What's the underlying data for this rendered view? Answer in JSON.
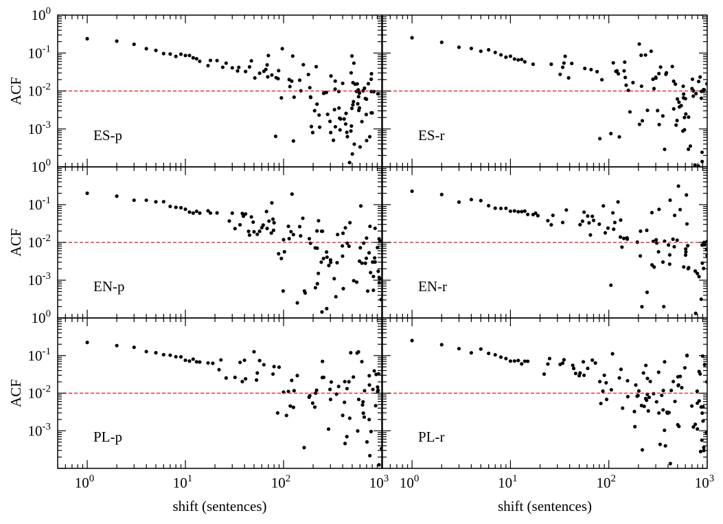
{
  "figure": {
    "colors": {
      "axis": "#000000",
      "points": "#000000",
      "threshold": "#e0101a",
      "background": "#ffffff"
    },
    "xlabel": "shift (sentences)",
    "ylabel": "ACF"
  },
  "chart_data": [
    {
      "type": "scatter",
      "label": "ES-p",
      "xscale": "log",
      "yscale": "log",
      "xlim": [
        0.5,
        1000
      ],
      "ylim": [
        0.0001,
        1
      ],
      "xticks": [
        "10^0",
        "10^1",
        "10^2",
        "10^3"
      ],
      "yticks": [
        "10^0",
        "10^-1",
        "10^-2",
        "10^-3"
      ],
      "threshold": 0.01,
      "ylabel": "ACF",
      "xlabel": "",
      "series": [
        {
          "name": "ACF",
          "x": [
            1,
            2,
            3,
            4,
            5,
            6,
            7,
            8,
            10,
            12,
            15,
            20,
            30,
            40,
            50,
            60,
            70,
            80,
            100,
            120,
            150,
            200,
            250,
            300,
            400,
            500,
            600,
            700,
            800,
            900
          ],
          "y": [
            0.25,
            0.2,
            0.15,
            0.125,
            0.11,
            0.1,
            0.095,
            0.09,
            0.085,
            0.075,
            0.06,
            0.055,
            0.045,
            0.042,
            0.04,
            0.038,
            0.036,
            0.035,
            0.032,
            0.025,
            0.02,
            0.016,
            0.012,
            0.01,
            0.008,
            0.007,
            0.007,
            0.006,
            0.006,
            0.005
          ]
        }
      ]
    },
    {
      "type": "scatter",
      "label": "ES-r",
      "xscale": "log",
      "yscale": "log",
      "xlim": [
        0.5,
        1000
      ],
      "ylim": [
        0.0001,
        1
      ],
      "xticks": [
        "10^0",
        "10^1",
        "10^2",
        "10^3"
      ],
      "yticks": [],
      "threshold": 0.01,
      "ylabel": "",
      "xlabel": "",
      "series": [
        {
          "name": "ACF",
          "x": [
            1,
            2,
            3,
            4,
            5,
            6,
            7,
            8,
            10,
            12,
            15,
            20,
            30,
            40,
            50,
            60,
            70,
            80,
            100,
            120,
            150,
            200,
            250,
            300,
            400,
            500,
            600,
            700,
            800,
            900
          ],
          "y": [
            0.26,
            0.19,
            0.15,
            0.13,
            0.12,
            0.115,
            0.1,
            0.09,
            0.08,
            0.07,
            0.06,
            0.055,
            0.045,
            0.04,
            0.038,
            0.035,
            0.03,
            0.028,
            0.025,
            0.02,
            0.018,
            0.015,
            0.013,
            0.011,
            0.01,
            0.009,
            0.009,
            0.008,
            0.008,
            0.007
          ]
        }
      ]
    },
    {
      "type": "scatter",
      "label": "EN-p",
      "xscale": "log",
      "yscale": "log",
      "xlim": [
        0.5,
        1000
      ],
      "ylim": [
        0.0001,
        1
      ],
      "xticks": [
        "10^0",
        "10^1",
        "10^2",
        "10^3"
      ],
      "yticks": [
        "10^0",
        "10^-1",
        "10^-2",
        "10^-3"
      ],
      "threshold": 0.01,
      "ylabel": "ACF",
      "xlabel": "",
      "series": [
        {
          "name": "ACF",
          "x": [
            1,
            2,
            3,
            4,
            5,
            6,
            7,
            8,
            10,
            12,
            15,
            20,
            30,
            40,
            50,
            60,
            70,
            80,
            100,
            120,
            150,
            200,
            250,
            300,
            400,
            500,
            600,
            700,
            800,
            900
          ],
          "y": [
            0.22,
            0.17,
            0.13,
            0.12,
            0.11,
            0.1,
            0.09,
            0.085,
            0.075,
            0.065,
            0.06,
            0.05,
            0.042,
            0.038,
            0.035,
            0.033,
            0.03,
            0.028,
            0.025,
            0.02,
            0.016,
            0.013,
            0.011,
            0.009,
            0.008,
            0.007,
            0.006,
            0.006,
            0.005,
            0.005
          ]
        }
      ]
    },
    {
      "type": "scatter",
      "label": "EN-r",
      "xscale": "log",
      "yscale": "log",
      "xlim": [
        0.5,
        1000
      ],
      "ylim": [
        0.0001,
        1
      ],
      "xticks": [
        "10^0",
        "10^1",
        "10^2",
        "10^3"
      ],
      "yticks": [],
      "threshold": 0.01,
      "ylabel": "",
      "xlabel": "",
      "series": [
        {
          "name": "ACF",
          "x": [
            1,
            2,
            3,
            4,
            5,
            6,
            7,
            8,
            10,
            12,
            15,
            20,
            30,
            40,
            50,
            60,
            70,
            80,
            100,
            120,
            150,
            200,
            250,
            300,
            400,
            500,
            600,
            700,
            800,
            900
          ],
          "y": [
            0.23,
            0.17,
            0.13,
            0.12,
            0.11,
            0.1,
            0.09,
            0.085,
            0.075,
            0.065,
            0.06,
            0.05,
            0.042,
            0.038,
            0.034,
            0.031,
            0.028,
            0.026,
            0.023,
            0.02,
            0.017,
            0.014,
            0.012,
            0.01,
            0.009,
            0.008,
            0.007,
            0.007,
            0.006,
            0.006
          ]
        }
      ]
    },
    {
      "type": "scatter",
      "label": "PL-p",
      "xscale": "log",
      "yscale": "log",
      "xlim": [
        0.5,
        1000
      ],
      "ylim": [
        0.0001,
        1
      ],
      "xticks": [
        "10^0",
        "10^1",
        "10^2",
        "10^3"
      ],
      "yticks": [
        "10^0",
        "10^-1",
        "10^-2",
        "10^-3"
      ],
      "threshold": 0.01,
      "ylabel": "ACF",
      "xlabel": "shift (sentences)",
      "series": [
        {
          "name": "ACF",
          "x": [
            1,
            2,
            3,
            4,
            5,
            6,
            7,
            8,
            10,
            12,
            15,
            20,
            30,
            40,
            50,
            60,
            70,
            80,
            100,
            120,
            150,
            200,
            250,
            300,
            400,
            500,
            600,
            700,
            800,
            900
          ],
          "y": [
            0.24,
            0.19,
            0.15,
            0.12,
            0.11,
            0.105,
            0.1,
            0.09,
            0.08,
            0.07,
            0.065,
            0.055,
            0.042,
            0.04,
            0.038,
            0.035,
            0.032,
            0.03,
            0.025,
            0.02,
            0.018,
            0.015,
            0.013,
            0.012,
            0.011,
            0.01,
            0.01,
            0.009,
            0.009,
            0.008
          ]
        }
      ]
    },
    {
      "type": "scatter",
      "label": "PL-r",
      "xscale": "log",
      "yscale": "log",
      "xlim": [
        0.5,
        1000
      ],
      "ylim": [
        0.0001,
        1
      ],
      "xticks": [
        "10^0",
        "10^1",
        "10^2",
        "10^3"
      ],
      "yticks": [],
      "threshold": 0.01,
      "ylabel": "",
      "xlabel": "shift (sentences)",
      "series": [
        {
          "name": "ACF",
          "x": [
            1,
            2,
            3,
            4,
            5,
            6,
            7,
            8,
            10,
            12,
            15,
            20,
            30,
            40,
            50,
            60,
            70,
            80,
            100,
            120,
            150,
            200,
            250,
            300,
            400,
            500,
            600,
            700,
            800,
            900
          ],
          "y": [
            0.25,
            0.19,
            0.15,
            0.12,
            0.115,
            0.11,
            0.1,
            0.09,
            0.08,
            0.07,
            0.065,
            0.055,
            0.045,
            0.04,
            0.035,
            0.032,
            0.03,
            0.028,
            0.024,
            0.02,
            0.017,
            0.014,
            0.012,
            0.011,
            0.01,
            0.009,
            0.009,
            0.008,
            0.008,
            0.008
          ]
        }
      ]
    }
  ]
}
